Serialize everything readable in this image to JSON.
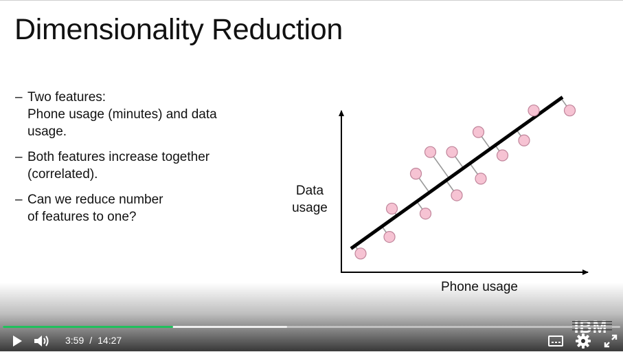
{
  "slide": {
    "title": "Dimensionality Reduction",
    "bullets": [
      {
        "dash": "–",
        "line1": "Two features:",
        "line2": "Phone usage (minutes) and data",
        "line3": "usage."
      },
      {
        "dash": "–",
        "line1": "Both features increase together",
        "line2": "(correlated)."
      },
      {
        "dash": "–",
        "line1": "Can we reduce number",
        "line2": "of features to one?"
      }
    ]
  },
  "chart_data": {
    "type": "scatter",
    "title": "",
    "xlabel": "Phone usage",
    "ylabel_line1": "Data",
    "ylabel_line2": "usage",
    "xlim": [
      0,
      10
    ],
    "ylim": [
      0,
      10
    ],
    "grid": false,
    "points": [
      {
        "x": 0.8,
        "y": 1.0
      },
      {
        "x": 2.0,
        "y": 2.0
      },
      {
        "x": 2.1,
        "y": 3.7
      },
      {
        "x": 3.1,
        "y": 5.8
      },
      {
        "x": 3.5,
        "y": 3.4
      },
      {
        "x": 3.7,
        "y": 7.1
      },
      {
        "x": 4.6,
        "y": 7.1
      },
      {
        "x": 4.8,
        "y": 4.5
      },
      {
        "x": 5.7,
        "y": 8.3
      },
      {
        "x": 5.8,
        "y": 5.5
      },
      {
        "x": 6.7,
        "y": 6.9
      },
      {
        "x": 7.6,
        "y": 7.8
      },
      {
        "x": 8.0,
        "y": 9.6
      },
      {
        "x": 9.5,
        "y": 9.6
      }
    ],
    "fit_line": {
      "x1": 0.4,
      "y1": 1.3,
      "x2": 9.2,
      "y2": 10.4
    },
    "colors": {
      "point_fill": "#f6c3d3",
      "point_stroke": "#c0849a",
      "line": "#000000",
      "residual": "#999999"
    }
  },
  "player": {
    "current_time": "3:59",
    "separator": "/",
    "duration": "14:27",
    "progress_fraction": 0.276,
    "buffered_fraction": 0.46,
    "accent_color": "#20c05c",
    "icons": [
      "play-icon",
      "volume-icon",
      "captions-icon",
      "settings-icon",
      "fullscreen-icon"
    ]
  },
  "brand": {
    "logo_text": "IBM"
  }
}
